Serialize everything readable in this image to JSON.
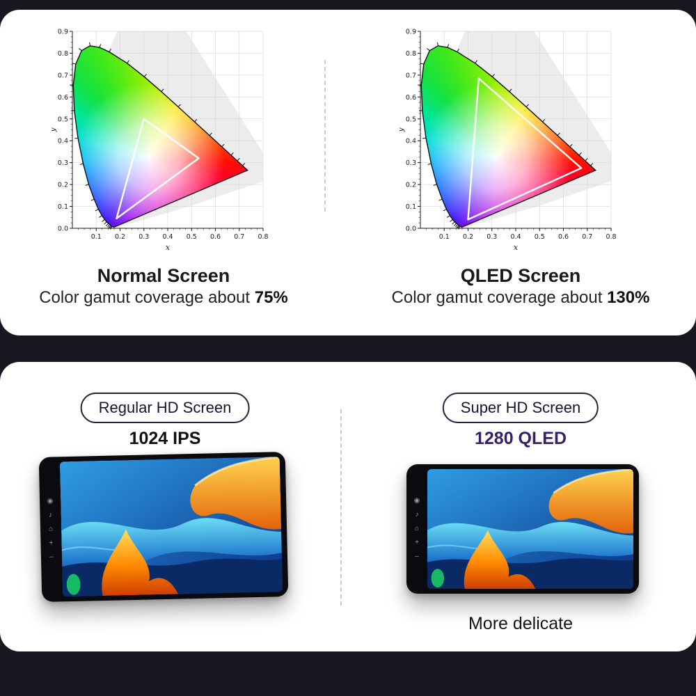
{
  "page": {
    "background": "#17171f",
    "panel_background": "#ffffff"
  },
  "top_panel": {
    "left_chart": {
      "title": "Normal Screen",
      "subtitle_prefix": "Color gamut coverage about",
      "coverage": "75%"
    },
    "right_chart": {
      "title": "QLED Screen",
      "subtitle_prefix": "Color gamut coverage about",
      "coverage": "130%"
    }
  },
  "bottom_panel": {
    "left": {
      "badge": "Regular HD Screen",
      "spec": "1024 IPS"
    },
    "right": {
      "badge": "Super HD Screen",
      "spec": "1280 QLED",
      "caption": "More delicate"
    }
  },
  "device": {
    "bezel_icons": [
      {
        "name": "power-icon",
        "glyph": "◉"
      },
      {
        "name": "music-icon",
        "glyph": "♪"
      },
      {
        "name": "home-icon",
        "glyph": "⌂"
      },
      {
        "name": "volume-up-icon",
        "glyph": "+"
      },
      {
        "name": "volume-down-icon",
        "glyph": "–"
      }
    ]
  },
  "white_point": [
    0.32,
    0.32
  ],
  "background_polygon": [
    [
      0.065,
      0.6
    ],
    [
      0.2,
      0.93
    ],
    [
      0.46,
      0.93
    ],
    [
      0.8,
      0.345
    ],
    [
      0.8,
      0.215
    ],
    [
      0.49,
      0.1
    ],
    [
      0.175,
      0.0
    ],
    [
      0.09,
      0.22
    ]
  ],
  "spectral_locus": [
    [
      0.1741,
      0.005
    ],
    [
      0.1666,
      0.0086
    ],
    [
      0.1644,
      0.0109
    ],
    [
      0.1611,
      0.0138
    ],
    [
      0.1566,
      0.0177
    ],
    [
      0.151,
      0.0227
    ],
    [
      0.144,
      0.0297
    ],
    [
      0.1355,
      0.0399
    ],
    [
      0.1241,
      0.0578
    ],
    [
      0.1096,
      0.0868
    ],
    [
      0.0913,
      0.1327
    ],
    [
      0.0687,
      0.2007
    ],
    [
      0.0454,
      0.295
    ],
    [
      0.0235,
      0.4127
    ],
    [
      0.0082,
      0.5384
    ],
    [
      0.0039,
      0.6548
    ],
    [
      0.0139,
      0.7502
    ],
    [
      0.0389,
      0.812
    ],
    [
      0.0743,
      0.8338
    ],
    [
      0.1142,
      0.8262
    ],
    [
      0.1547,
      0.8059
    ],
    [
      0.2296,
      0.7543
    ],
    [
      0.3016,
      0.6923
    ],
    [
      0.3731,
      0.6245
    ],
    [
      0.4441,
      0.5547
    ],
    [
      0.5125,
      0.4866
    ],
    [
      0.5752,
      0.4242
    ],
    [
      0.627,
      0.3725
    ],
    [
      0.6658,
      0.334
    ],
    [
      0.6915,
      0.3083
    ],
    [
      0.714,
      0.2859
    ],
    [
      0.7347,
      0.2653
    ]
  ],
  "chart_data": [
    {
      "type": "chromaticity_diagram",
      "title": "Normal Screen",
      "xlabel": "x",
      "ylabel": "y",
      "xlim": [
        0.0,
        0.8
      ],
      "ylim": [
        0.0,
        0.9
      ],
      "x_tick_labels": [
        "0.1",
        "0.2",
        "0.3",
        "0.4",
        "0.5",
        "0.6",
        "0.7",
        "0.8"
      ],
      "y_tick_labels": [
        "0.0",
        "0.1",
        "0.2",
        "0.3",
        "0.4",
        "0.5",
        "0.6",
        "0.7",
        "0.8",
        "0.9"
      ],
      "grid": true,
      "gamut_triangle": [
        [
          0.3,
          0.5
        ],
        [
          0.53,
          0.32
        ],
        [
          0.185,
          0.045
        ]
      ],
      "coverage": "75%"
    },
    {
      "type": "chromaticity_diagram",
      "title": "QLED Screen",
      "xlabel": "x",
      "ylabel": "y",
      "xlim": [
        0.0,
        0.8
      ],
      "ylim": [
        0.0,
        0.9
      ],
      "x_tick_labels": [
        "0.1",
        "0.2",
        "0.3",
        "0.4",
        "0.5",
        "0.6",
        "0.7",
        "0.8"
      ],
      "y_tick_labels": [
        "0.0",
        "0.1",
        "0.2",
        "0.3",
        "0.4",
        "0.5",
        "0.6",
        "0.7",
        "0.8",
        "0.9"
      ],
      "grid": true,
      "gamut_triangle": [
        [
          0.245,
          0.685
        ],
        [
          0.675,
          0.275
        ],
        [
          0.2,
          0.04
        ]
      ],
      "coverage": "130%"
    }
  ]
}
